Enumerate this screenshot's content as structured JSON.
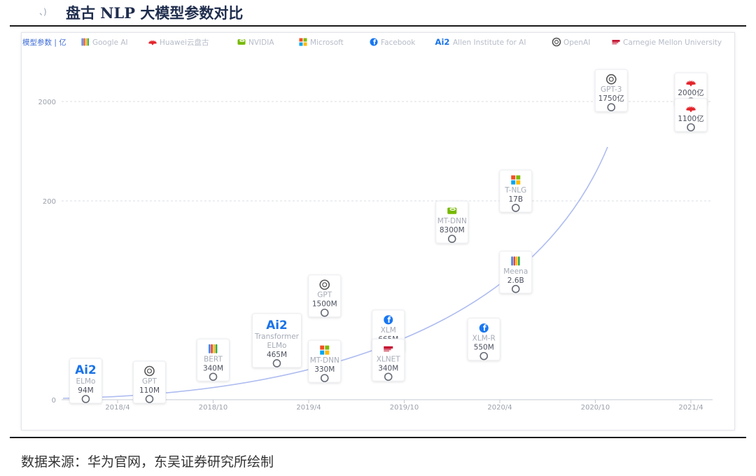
{
  "page": {
    "title": "盘古 NLP 大模型参数对比",
    "corner_mark": "、)",
    "source": "数据来源：华为官网，东吴证券研究所绘制"
  },
  "chart_data": {
    "type": "scatter",
    "y_scale": "log",
    "y_unit_label": "模型参数 | 亿",
    "x_ticks": [
      "2018/4",
      "2018/10",
      "2019/4",
      "2019/10",
      "2020/4",
      "2020/10",
      "2021/4"
    ],
    "y_ticks": [
      "2000",
      "200",
      "0"
    ],
    "grid": "horizontal dashed",
    "legend_position": "top",
    "legend": [
      {
        "name": "Google AI",
        "icon": "google-ai-icon",
        "color": "#f2b33d"
      },
      {
        "name": "Huawei云盘古",
        "icon": "huawei-icon",
        "color": "#e3242b"
      },
      {
        "name": "NVIDIA",
        "icon": "nvidia-icon",
        "color": "#76b900"
      },
      {
        "name": "Microsoft",
        "icon": "microsoft-icon",
        "color": "#00a4ef"
      },
      {
        "name": "Facebook",
        "icon": "facebook-icon",
        "color": "#1877f2"
      },
      {
        "name": "Allen Institute for AI",
        "icon": "ai2-icon",
        "color": "#1a73e8"
      },
      {
        "name": "OpenAI",
        "icon": "openai-icon",
        "color": "#444444"
      },
      {
        "name": "Carnegie Mellon University",
        "icon": "cmu-icon",
        "color": "#c41230"
      }
    ],
    "points": [
      {
        "org": "ai2-icon",
        "name": "ELMo",
        "value_label": "94M",
        "date": "2018/2",
        "params_yi": 0.94
      },
      {
        "org": "openai-icon",
        "name": "GPT",
        "value_label": "110M",
        "date": "2018/6",
        "params_yi": 1.1
      },
      {
        "org": "google-ai-icon",
        "name": "BERT",
        "value_label": "340M",
        "date": "2018/10",
        "params_yi": 3.4
      },
      {
        "org": "ai2-icon",
        "name": "Transformer ELMo",
        "value_label": "465M",
        "date": "2019/2",
        "params_yi": 4.65
      },
      {
        "org": "openai-icon",
        "name": "GPT",
        "value_label": "1500M",
        "date": "2019/5",
        "params_yi": 15
      },
      {
        "org": "microsoft-icon",
        "name": "MT-DNN",
        "value_label": "330M",
        "date": "2019/5",
        "params_yi": 3.3
      },
      {
        "org": "facebook-icon",
        "name": "XLM",
        "value_label": "665M",
        "date": "2019/9",
        "params_yi": 6.65
      },
      {
        "org": "cmu-icon",
        "name": "XLNET",
        "value_label": "340M",
        "date": "2019/9",
        "params_yi": 3.4
      },
      {
        "org": "nvidia-icon",
        "name": "MT-DNN",
        "value_label": "8300M",
        "date": "2020/1",
        "params_yi": 83
      },
      {
        "org": "facebook-icon",
        "name": "XLM-R",
        "value_label": "550M",
        "date": "2020/3",
        "params_yi": 5.5
      },
      {
        "org": "microsoft-icon",
        "name": "T-NLG",
        "value_label": "17B",
        "date": "2020/5",
        "params_yi": 170
      },
      {
        "org": "google-ai-icon",
        "name": "Meena",
        "value_label": "2.6B",
        "date": "2020/5",
        "params_yi": 26
      },
      {
        "org": "openai-icon",
        "name": "GPT-3",
        "value_label": "1750亿",
        "date": "2020/11",
        "params_yi": 1750
      },
      {
        "org": "huawei-icon",
        "name": "",
        "value_label": "2000亿",
        "date": "2021/4",
        "params_yi": 2000
      },
      {
        "org": "huawei-icon",
        "name": "",
        "value_label": "1100亿",
        "date": "2021/4",
        "params_yi": 1100
      }
    ]
  }
}
